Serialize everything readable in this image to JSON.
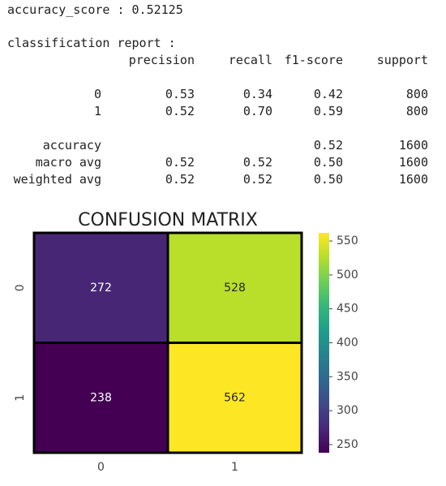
{
  "report": {
    "accuracy_line": "accuracy_score : 0.52125",
    "heading": "classification report :",
    "columns": [
      "precision",
      "recall",
      "f1-score",
      "support"
    ],
    "rows": [
      [
        "0",
        "0.53",
        "0.34",
        "0.42",
        "800"
      ],
      [
        "1",
        "0.52",
        "0.70",
        "0.59",
        "800"
      ],
      [
        "accuracy",
        null,
        null,
        "0.52",
        "1600"
      ],
      [
        "macro avg",
        "0.52",
        "0.52",
        "0.50",
        "1600"
      ],
      [
        "weighted avg",
        "0.52",
        "0.52",
        "0.50",
        "1600"
      ]
    ]
  },
  "chart_data": {
    "type": "heatmap",
    "title": "CONFUSION MATRIX",
    "colormap": "viridis",
    "x_categories": [
      "0",
      "1"
    ],
    "y_categories": [
      "0",
      "1"
    ],
    "values": [
      [
        272,
        528
      ],
      [
        238,
        562
      ]
    ],
    "clim": [
      238,
      562
    ],
    "cticks": [
      250,
      300,
      350,
      400,
      450,
      500,
      550
    ]
  }
}
